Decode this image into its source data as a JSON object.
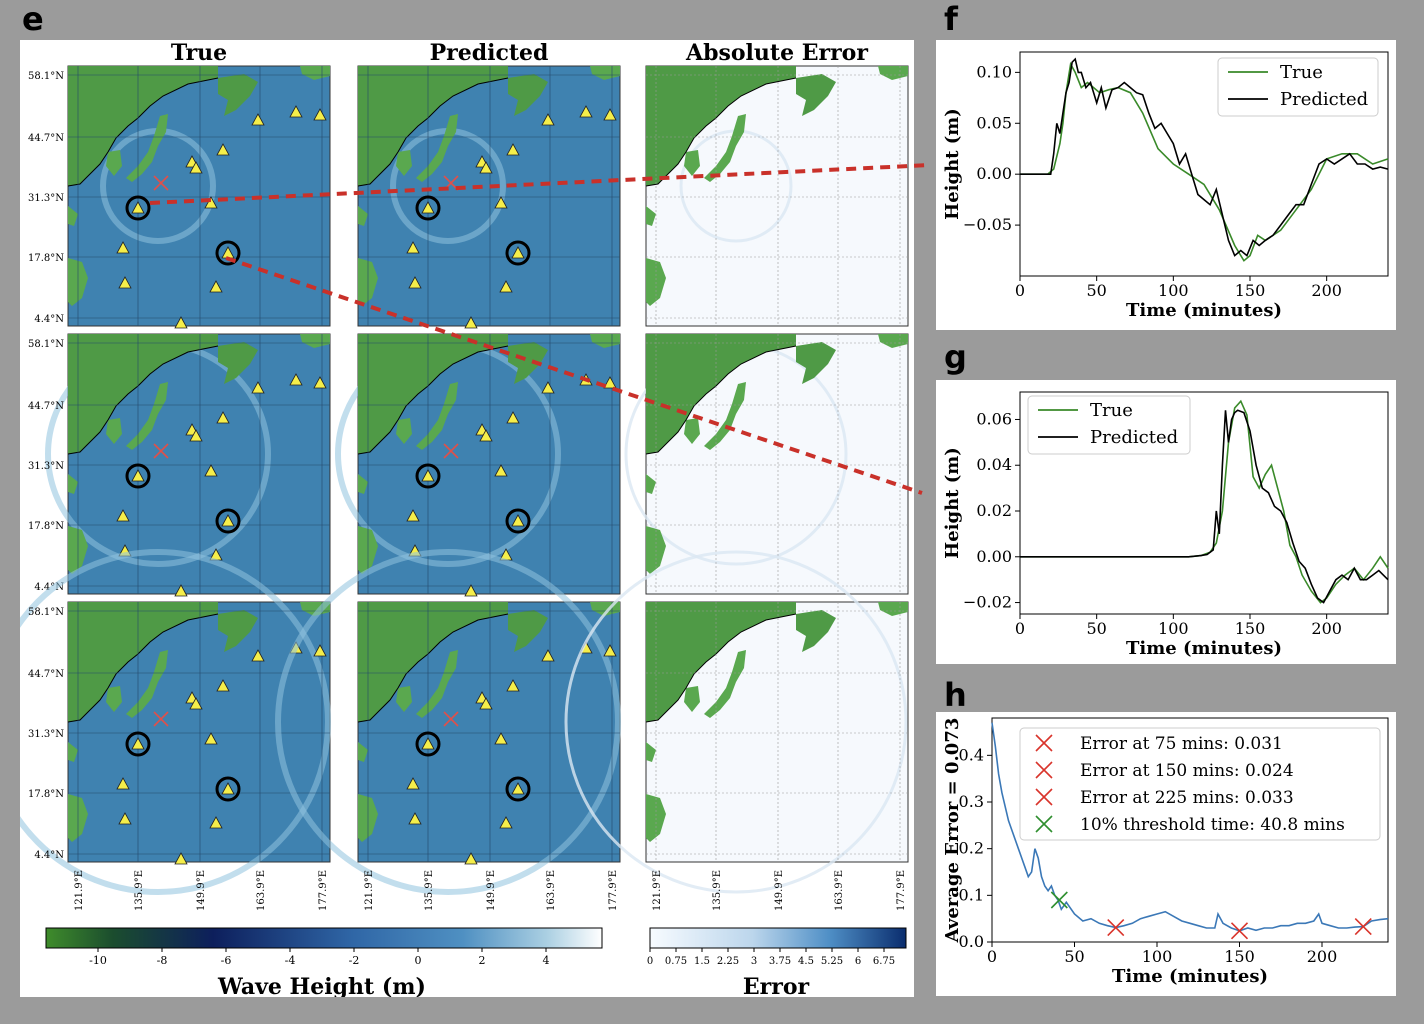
{
  "panel_labels": {
    "e": "e",
    "f": "f",
    "g": "g",
    "h": "h"
  },
  "maps": {
    "columns": [
      "True",
      "Predicted",
      "Absolute Error"
    ],
    "lat_ticks": [
      "58.1°N",
      "44.7°N",
      "31.3°N",
      "17.8°N",
      "4.4°N"
    ],
    "lon_ticks": [
      "121.9°E",
      "135.9°E",
      "149.9°E",
      "163.9°E",
      "177.9°E"
    ],
    "colorbar_wave": {
      "label": "Wave Height (m)",
      "ticks": [
        "-10",
        "-8",
        "-6",
        "-4",
        "-2",
        "0",
        "2",
        "4"
      ]
    },
    "colorbar_error": {
      "label": "Error",
      "ticks": [
        "0",
        "0.75",
        "1.5",
        "2.25",
        "3",
        "3.75",
        "4.5",
        "5.25",
        "6",
        "6.75"
      ]
    }
  },
  "chart_data": [
    {
      "id": "f",
      "type": "line",
      "xlabel": "Time (minutes)",
      "ylabel": "Height (m)",
      "xlim": [
        0,
        240
      ],
      "ylim": [
        -0.1,
        0.12
      ],
      "xticks": [
        0,
        50,
        100,
        150,
        200
      ],
      "yticks": [
        -0.05,
        0.0,
        0.05,
        0.1
      ],
      "ytick_labels": [
        "−0.05",
        "0.00",
        "0.05",
        "0.10"
      ],
      "legend_position": "top-right",
      "series": [
        {
          "name": "True",
          "color": "#3a8a2a",
          "x": [
            0,
            18,
            22,
            26,
            28,
            30,
            33,
            36,
            40,
            44,
            48,
            52,
            58,
            64,
            72,
            80,
            90,
            100,
            110,
            120,
            130,
            140,
            146,
            150,
            155,
            160,
            170,
            180,
            190,
            200,
            210,
            220,
            230,
            240
          ],
          "y": [
            0,
            0,
            0.005,
            0.03,
            0.05,
            0.08,
            0.108,
            0.1,
            0.085,
            0.09,
            0.085,
            0.08,
            0.083,
            0.085,
            0.08,
            0.06,
            0.025,
            0.01,
            0.0,
            -0.01,
            -0.035,
            -0.07,
            -0.085,
            -0.08,
            -0.06,
            -0.065,
            -0.055,
            -0.035,
            -0.015,
            0.015,
            0.02,
            0.02,
            0.01,
            0.015
          ]
        },
        {
          "name": "Predicted",
          "color": "#000000",
          "x": [
            0,
            20,
            22,
            24,
            26,
            28,
            30,
            32,
            34,
            36,
            38,
            40,
            43,
            46,
            50,
            53,
            56,
            60,
            64,
            68,
            72,
            76,
            80,
            84,
            88,
            92,
            96,
            100,
            104,
            108,
            112,
            116,
            120,
            124,
            128,
            132,
            136,
            140,
            144,
            148,
            152,
            156,
            160,
            165,
            170,
            175,
            180,
            185,
            190,
            195,
            200,
            205,
            210,
            215,
            220,
            225,
            230,
            235,
            240
          ],
          "y": [
            0,
            0,
            0.02,
            0.05,
            0.04,
            0.06,
            0.08,
            0.09,
            0.11,
            0.113,
            0.1,
            0.1,
            0.085,
            0.09,
            0.07,
            0.085,
            0.065,
            0.083,
            0.085,
            0.09,
            0.085,
            0.08,
            0.078,
            0.06,
            0.045,
            0.05,
            0.04,
            0.03,
            0.01,
            0.02,
            0.0,
            -0.02,
            -0.025,
            -0.03,
            -0.015,
            -0.04,
            -0.065,
            -0.08,
            -0.075,
            -0.08,
            -0.065,
            -0.07,
            -0.065,
            -0.06,
            -0.05,
            -0.04,
            -0.03,
            -0.03,
            -0.01,
            0.01,
            0.015,
            0.01,
            0.015,
            0.02,
            0.01,
            0.01,
            0.005,
            0.007,
            0.005
          ]
        }
      ]
    },
    {
      "id": "g",
      "type": "line",
      "xlabel": "Time (minutes)",
      "ylabel": "Height (m)",
      "xlim": [
        0,
        240
      ],
      "ylim": [
        -0.025,
        0.072
      ],
      "xticks": [
        0,
        50,
        100,
        150,
        200
      ],
      "yticks": [
        -0.02,
        0.0,
        0.02,
        0.04,
        0.06
      ],
      "ytick_labels": [
        "−0.02",
        "0.00",
        "0.02",
        "0.04",
        "0.06"
      ],
      "legend_position": "top-left",
      "series": [
        {
          "name": "True",
          "color": "#3a8a2a",
          "x": [
            0,
            110,
            118,
            124,
            128,
            132,
            136,
            140,
            144,
            148,
            152,
            156,
            160,
            164,
            168,
            172,
            176,
            180,
            184,
            190,
            196,
            200,
            206,
            212,
            218,
            224,
            230,
            235,
            240
          ],
          "y": [
            0,
            0,
            0.0005,
            0.002,
            0.006,
            0.02,
            0.05,
            0.065,
            0.068,
            0.062,
            0.035,
            0.03,
            0.036,
            0.04,
            0.03,
            0.02,
            0.005,
            0.0,
            -0.008,
            -0.015,
            -0.02,
            -0.018,
            -0.012,
            -0.008,
            -0.005,
            -0.01,
            -0.005,
            0.0,
            -0.005
          ]
        },
        {
          "name": "Predicted",
          "color": "#000000",
          "x": [
            0,
            110,
            118,
            122,
            126,
            128,
            130,
            132,
            134,
            136,
            138,
            140,
            142,
            146,
            150,
            154,
            158,
            162,
            166,
            170,
            174,
            178,
            182,
            186,
            190,
            194,
            198,
            202,
            206,
            210,
            214,
            218,
            222,
            226,
            230,
            234,
            240
          ],
          "y": [
            0,
            0,
            0.0005,
            0.001,
            0.003,
            0.02,
            0.01,
            0.04,
            0.064,
            0.05,
            0.06,
            0.063,
            0.064,
            0.063,
            0.055,
            0.04,
            0.03,
            0.028,
            0.022,
            0.02,
            0.015,
            0.006,
            -0.002,
            -0.005,
            -0.012,
            -0.018,
            -0.02,
            -0.015,
            -0.01,
            -0.008,
            -0.01,
            -0.005,
            -0.01,
            -0.01,
            -0.008,
            -0.006,
            -0.01
          ]
        }
      ]
    },
    {
      "id": "h",
      "type": "line",
      "xlabel": "Time (minutes)",
      "ylabel": "Average Error = 0.073",
      "xlim": [
        0,
        240
      ],
      "ylim": [
        0,
        0.48
      ],
      "xticks": [
        0,
        50,
        100,
        150,
        200
      ],
      "yticks": [
        0.0,
        0.1,
        0.2,
        0.3,
        0.4
      ],
      "ytick_labels": [
        "0.0",
        "0.1",
        "0.2",
        "0.3",
        "0.4"
      ],
      "legend_position": "top-right",
      "series": [
        {
          "name": "",
          "color": "#3b78b7",
          "x": [
            0,
            2,
            4,
            6,
            8,
            10,
            12,
            14,
            16,
            18,
            20,
            22,
            24,
            26,
            28,
            30,
            32,
            34,
            36,
            38,
            40,
            42,
            45,
            50,
            55,
            60,
            65,
            70,
            75,
            80,
            85,
            90,
            95,
            100,
            105,
            110,
            115,
            120,
            125,
            130,
            135,
            137,
            140,
            145,
            150,
            155,
            160,
            165,
            170,
            175,
            180,
            185,
            190,
            195,
            198,
            200,
            205,
            210,
            215,
            220,
            225,
            230,
            235,
            240
          ],
          "y": [
            0.47,
            0.42,
            0.36,
            0.32,
            0.29,
            0.26,
            0.24,
            0.22,
            0.2,
            0.18,
            0.16,
            0.14,
            0.15,
            0.2,
            0.18,
            0.14,
            0.12,
            0.11,
            0.12,
            0.1,
            0.09,
            0.07,
            0.085,
            0.06,
            0.045,
            0.05,
            0.04,
            0.035,
            0.031,
            0.035,
            0.04,
            0.05,
            0.055,
            0.06,
            0.065,
            0.055,
            0.045,
            0.04,
            0.035,
            0.03,
            0.03,
            0.06,
            0.04,
            0.03,
            0.024,
            0.03,
            0.025,
            0.03,
            0.03,
            0.035,
            0.035,
            0.04,
            0.04,
            0.045,
            0.06,
            0.04,
            0.035,
            0.03,
            0.03,
            0.032,
            0.033,
            0.045,
            0.048,
            0.05
          ]
        }
      ],
      "markers": [
        {
          "label": "Error at 75 mins: 0.031",
          "x": 75,
          "y": 0.031,
          "color": "#d9342b"
        },
        {
          "label": "Error at 150 mins: 0.024",
          "x": 150,
          "y": 0.024,
          "color": "#d9342b"
        },
        {
          "label": "Error at 225 mins: 0.033",
          "x": 225,
          "y": 0.033,
          "color": "#d9342b"
        },
        {
          "label": "10% threshold time: 40.8 mins",
          "x": 40.8,
          "y": 0.09,
          "color": "#2f8f2f"
        }
      ]
    }
  ]
}
